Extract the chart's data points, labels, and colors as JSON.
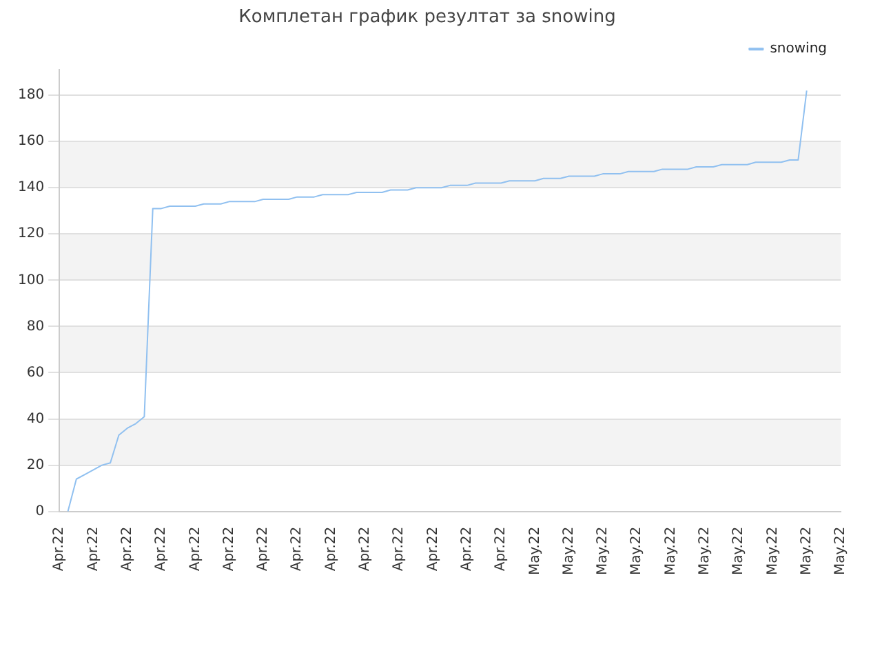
{
  "chart_data": {
    "type": "line",
    "title": "Комплетан график резултат за snowing",
    "categories": [
      "Apr.22",
      null,
      null,
      null,
      "Apr.22",
      null,
      null,
      null,
      "Apr.22",
      null,
      null,
      null,
      "Apr.22",
      null,
      null,
      null,
      "Apr.22",
      null,
      null,
      null,
      "Apr.22",
      null,
      null,
      null,
      "Apr.22",
      null,
      null,
      null,
      "Apr.22",
      null,
      null,
      null,
      "Apr.22",
      null,
      null,
      null,
      "Apr.22",
      null,
      null,
      null,
      "Apr.22",
      null,
      null,
      null,
      "Apr.22",
      null,
      null,
      null,
      "Apr.22",
      null,
      null,
      null,
      "Apr.22",
      null,
      null,
      null,
      "May.22",
      null,
      null,
      null,
      "May.22",
      null,
      null,
      null,
      "May.22",
      null,
      null,
      null,
      "May.22",
      null,
      null,
      null,
      "May.22",
      null,
      null,
      null,
      "May.22",
      null,
      null,
      null,
      "May.22",
      null,
      null,
      null,
      "May.22",
      null,
      null,
      null,
      "May.22",
      null,
      null,
      null,
      "May.22"
    ],
    "ylim": [
      0,
      191
    ],
    "yticks": [
      0,
      20,
      40,
      60,
      80,
      100,
      120,
      140,
      160,
      180
    ],
    "grid": "y",
    "legend": "top right",
    "marker": "none",
    "line_style": "solid",
    "series": [
      {
        "name": "snowing",
        "color": "#90c0f0",
        "values": [
          null,
          0,
          14,
          16,
          18,
          20,
          21,
          33,
          36,
          38,
          41,
          131,
          131,
          132,
          132,
          132,
          132,
          133,
          133,
          133,
          134,
          134,
          134,
          134,
          135,
          135,
          135,
          135,
          136,
          136,
          136,
          137,
          137,
          137,
          137,
          138,
          138,
          138,
          138,
          139,
          139,
          139,
          140,
          140,
          140,
          140,
          141,
          141,
          141,
          142,
          142,
          142,
          142,
          143,
          143,
          143,
          143,
          144,
          144,
          144,
          145,
          145,
          145,
          145,
          146,
          146,
          146,
          147,
          147,
          147,
          147,
          148,
          148,
          148,
          148,
          149,
          149,
          149,
          150,
          150,
          150,
          150,
          151,
          151,
          151,
          151,
          152,
          152,
          182,
          null,
          null,
          null,
          null
        ]
      }
    ]
  }
}
